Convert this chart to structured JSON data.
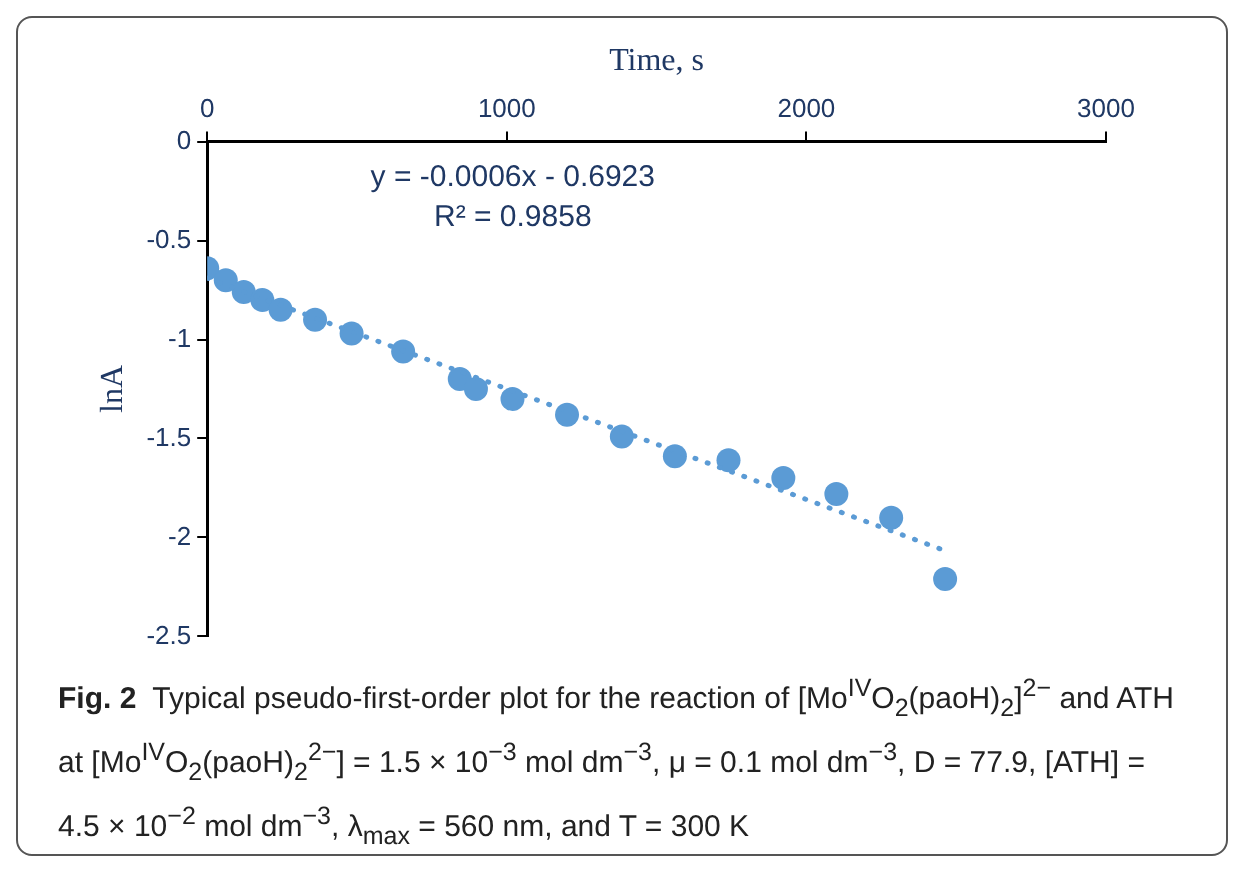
{
  "chart_data": {
    "type": "scatter",
    "xlabel": "Time, s",
    "ylabel": "lnA",
    "x": [
      0,
      62,
      122,
      184,
      245,
      360,
      482,
      654,
      843,
      897,
      1019,
      1201,
      1384,
      1561,
      1740,
      1923,
      2100,
      2283,
      2463
    ],
    "series": [
      {
        "color": "#5b9bd5",
        "values": [
          -0.64,
          -0.7,
          -0.76,
          -0.8,
          -0.85,
          -0.9,
          -0.97,
          -1.06,
          -1.2,
          -1.25,
          -1.3,
          -1.38,
          -1.49,
          -1.59,
          -1.61,
          -1.7,
          -1.78,
          -1.9,
          -2.21
        ]
      },
      {
        "type": "line",
        "color": "#5b9bd5",
        "line_style": "dotted",
        "marker": "none",
        "x": [
          0,
          2450
        ],
        "values": [
          -0.69,
          -2.06
        ]
      }
    ],
    "marker": "circle",
    "xlim": [
      0,
      3000
    ],
    "xticks": [
      0,
      1000,
      2000,
      3000
    ],
    "ylim": [
      -2.5,
      0
    ],
    "yticks": [
      -2.5,
      -2,
      -1.5,
      -1,
      -0.5,
      0
    ],
    "grid": false,
    "legend": false,
    "annotations": [
      "y = -0.0006x - 0.6923",
      "R² = 0.9858",
      "Fig. 2",
      "Typical pseudo-first-order plot for the reaction of [Mo$^{IV}$O$_{2}$(paoH)$_{2}$]$^{2−}$ and ATH at [Mo$^{IV}$O$_{2}$(paoH)$_{2}$$^{2−}$] = 1.5 × 10$^{−3}$ mol dm$^{−3}$, μ = 0.1 mol dm$^{−3}$, D = 77.9, [ATH] = 4.5 × 10$^{−2}$ mol dm$^{−3}$, λ$_{max}$ = 560 nm, and T = 300 K"
    ]
  }
}
